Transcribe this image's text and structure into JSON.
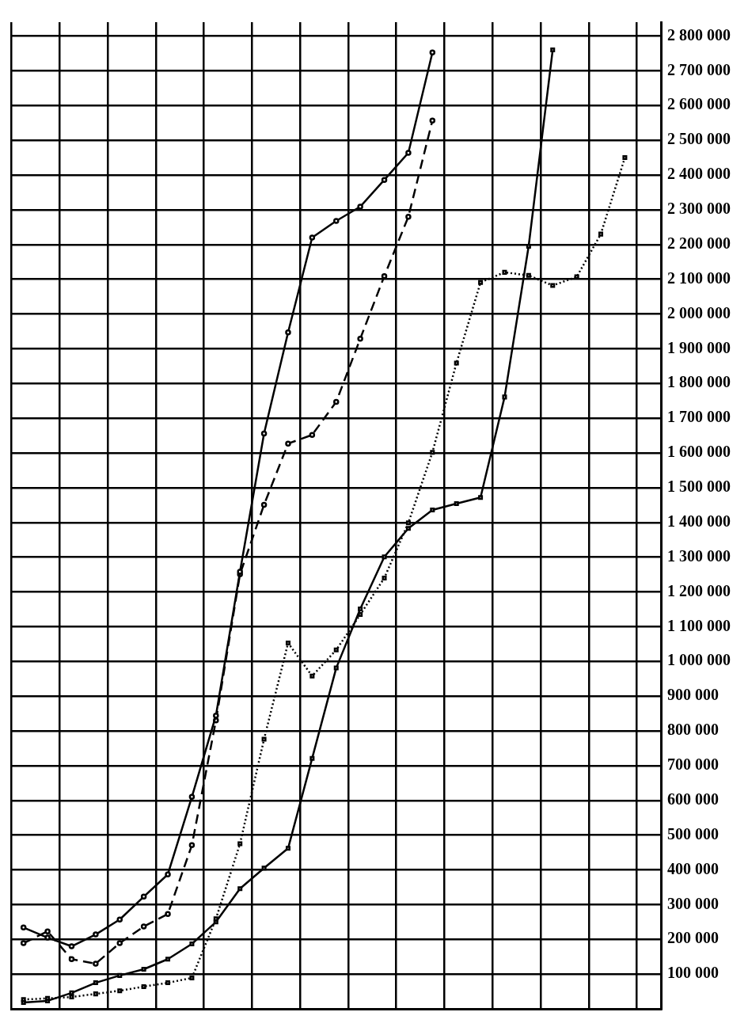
{
  "chart_data": {
    "type": "line",
    "categories": [
      null,
      null,
      null,
      null,
      null,
      null,
      null,
      null,
      null,
      null,
      null,
      null,
      null,
      null,
      null,
      null,
      null,
      null,
      null,
      null,
      null,
      null,
      null,
      null,
      null,
      null,
      null
    ],
    "series": [
      {
        "color": "#000000",
        "line_style": "solid",
        "marker": "circle",
        "values": [
          234000,
          205000,
          180000,
          214000,
          257000,
          323000,
          387000,
          610000,
          844000,
          1258000,
          1656000,
          1947000,
          2220000,
          2268000,
          2309000,
          2386000,
          2464000,
          2753000,
          null,
          null,
          null,
          null,
          null,
          null,
          null,
          null,
          null
        ]
      },
      {
        "color": "#000000",
        "line_style": "dashed",
        "marker": "circle",
        "values": [
          189000,
          223000,
          143000,
          130000,
          189000,
          237000,
          273000,
          471000,
          830000,
          1251000,
          1451000,
          1627000,
          1652000,
          1747000,
          1929000,
          2109000,
          2280000,
          2557000,
          null,
          null,
          null,
          null,
          null,
          null,
          null,
          null,
          null
        ]
      },
      {
        "color": "#000000",
        "line_style": "dotted",
        "marker": "square",
        "values": [
          27000,
          30000,
          34000,
          43000,
          52000,
          64000,
          75000,
          89000,
          259000,
          475000,
          776000,
          1053000,
          958000,
          1033000,
          1135000,
          1240000,
          1399000,
          1602000,
          1859000,
          2091000,
          2120000,
          2111000,
          2082000,
          2107000,
          2230000,
          2450000,
          null
        ]
      },
      {
        "color": "#000000",
        "line_style": "solid",
        "marker": "square",
        "values": [
          18000,
          23000,
          46000,
          75000,
          96000,
          114000,
          143000,
          187000,
          250000,
          346000,
          405000,
          462000,
          721000,
          981000,
          1151000,
          1301000,
          1383000,
          1436000,
          1454000,
          1472000,
          1761000,
          2195000,
          2760000,
          null,
          null,
          null,
          null
        ]
      }
    ],
    "ylim": [
      0,
      2840000
    ],
    "yticks": [
      {
        "value": 100000,
        "label": "100 000"
      },
      {
        "value": 200000,
        "label": "200 000"
      },
      {
        "value": 300000,
        "label": "300 000"
      },
      {
        "value": 400000,
        "label": "400 000"
      },
      {
        "value": 500000,
        "label": "500 000"
      },
      {
        "value": 600000,
        "label": "600 000"
      },
      {
        "value": 700000,
        "label": "700 000"
      },
      {
        "value": 800000,
        "label": "800 000"
      },
      {
        "value": 900000,
        "label": "900 000"
      },
      {
        "value": 1000000,
        "label": "1 000 000"
      },
      {
        "value": 1100000,
        "label": "1 100 000"
      },
      {
        "value": 1200000,
        "label": "1 200 000"
      },
      {
        "value": 1300000,
        "label": "1 300 000"
      },
      {
        "value": 1400000,
        "label": "1 400 000"
      },
      {
        "value": 1500000,
        "label": "1 500 000"
      },
      {
        "value": 1600000,
        "label": "1 600 000"
      },
      {
        "value": 1700000,
        "label": "1 700 000"
      },
      {
        "value": 1800000,
        "label": "1 800 000"
      },
      {
        "value": 1900000,
        "label": "1 900 000"
      },
      {
        "value": 2000000,
        "label": "2 000 000"
      },
      {
        "value": 2100000,
        "label": "2 100 000"
      },
      {
        "value": 2200000,
        "label": "2 200 000"
      },
      {
        "value": 2300000,
        "label": "2 300 000"
      },
      {
        "value": 2400000,
        "label": "2 400 000"
      },
      {
        "value": 2500000,
        "label": "2 500 000"
      },
      {
        "value": 2600000,
        "label": "2 600 000"
      },
      {
        "value": 2700000,
        "label": "2 700 000"
      },
      {
        "value": 2800000,
        "label": "2 800 000"
      }
    ],
    "tick_labels": "y",
    "grid": true,
    "legend": false
  }
}
